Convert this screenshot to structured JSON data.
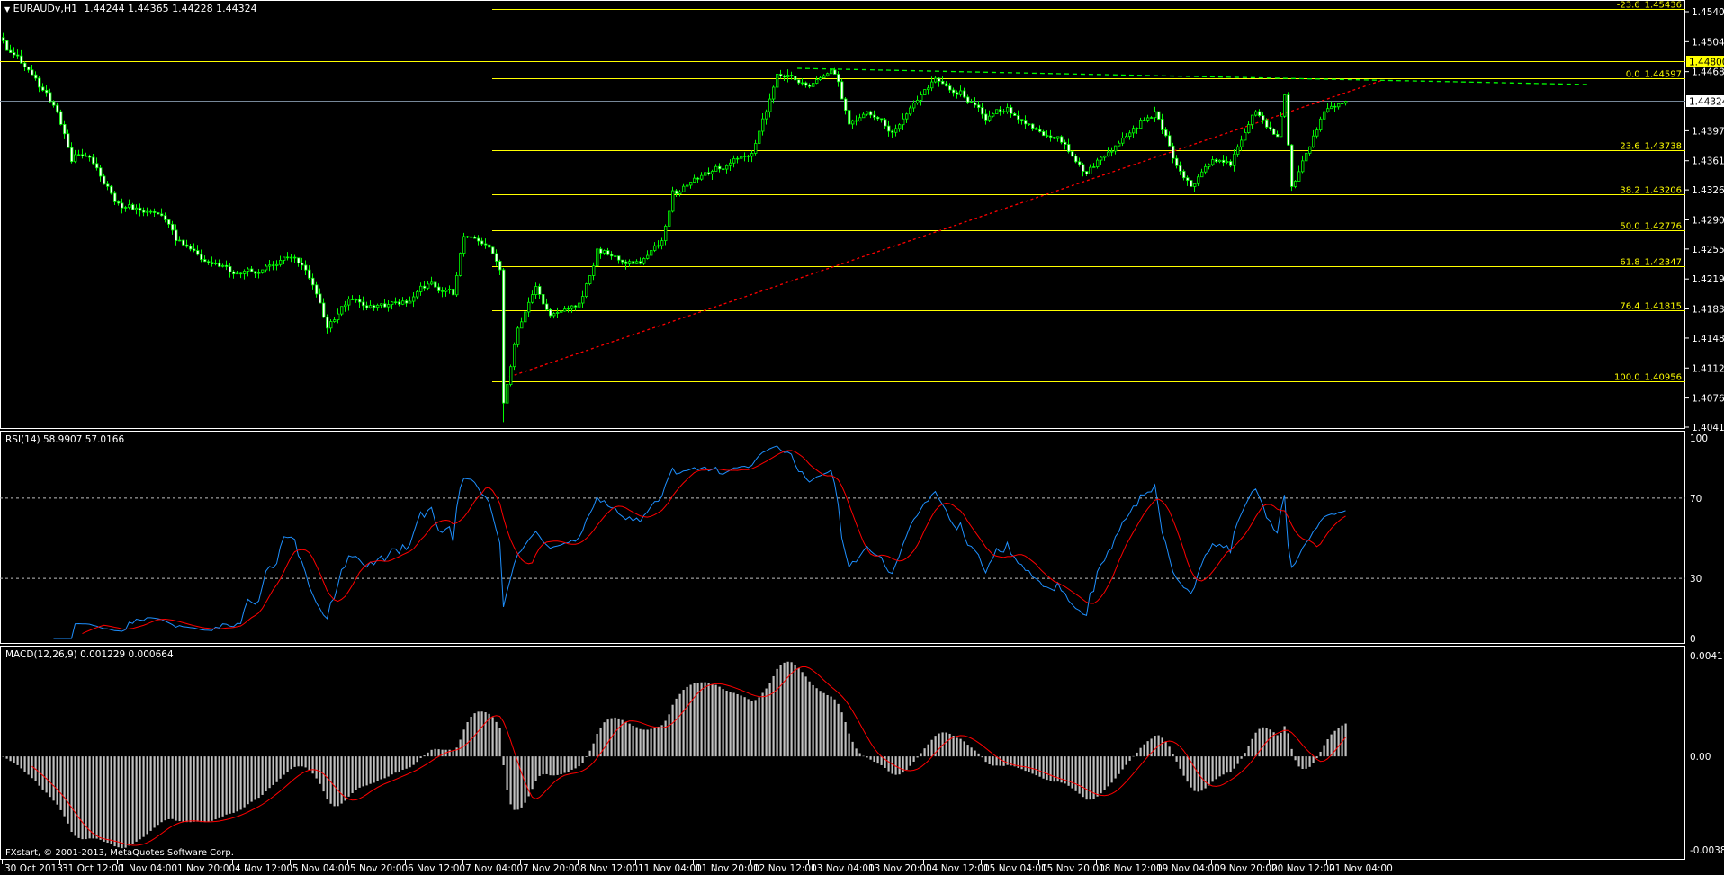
{
  "header": {
    "symbol_timeframe": "EURAUDv,H1",
    "ohlc": "1.44244 1.44365 1.44228 1.44324"
  },
  "footer": {
    "copyright": "FXstart, © 2001-2013, MetaQuotes Software Corp."
  },
  "colors": {
    "background": "#000000",
    "candle": "#00ff00",
    "fibo": "#ffff00",
    "bid_line": "#778899",
    "trendline": "#ff0000",
    "rsi": "#1e90ff",
    "signal": "#ff0000",
    "histogram": "#c0c0c0"
  },
  "chart_data": {
    "type": "candlestick",
    "price_axis": {
      "range": [
        1.4041,
        1.454
      ],
      "ticks": [
        "1.45400",
        "1.45040",
        "1.44680",
        "1.43970",
        "1.43610",
        "1.43260",
        "1.42900",
        "1.42550",
        "1.42190",
        "1.41830",
        "1.41480",
        "1.41120",
        "1.40760",
        "1.40410"
      ],
      "hline_label": "1.44800",
      "hline_value": 1.448,
      "bid_label": "1.44324",
      "bid_value": 1.44324
    },
    "time_labels": [
      "30 Oct 2013",
      "31 Oct 12:00",
      "1 Nov 04:00",
      "1 Nov 20:00",
      "4 Nov 12:00",
      "5 Nov 04:00",
      "5 Nov 20:00",
      "6 Nov 12:00",
      "7 Nov 04:00",
      "7 Nov 20:00",
      "8 Nov 12:00",
      "11 Nov 04:00",
      "11 Nov 20:00",
      "12 Nov 12:00",
      "13 Nov 04:00",
      "13 Nov 20:00",
      "14 Nov 12:00",
      "15 Nov 04:00",
      "15 Nov 20:00",
      "18 Nov 12:00",
      "19 Nov 04:00",
      "19 Nov 20:00",
      "20 Nov 12:00",
      "21 Nov 04:00"
    ],
    "approx_close": [
      {
        "t": "30 Oct 20:00",
        "p": 1.4505
      },
      {
        "t": "31 Oct 03:00",
        "p": 1.447
      },
      {
        "t": "31 Oct 11:00",
        "p": 1.442
      },
      {
        "t": "31 Oct 15:00",
        "p": 1.436
      },
      {
        "t": "31 Oct 20:00",
        "p": 1.4365
      },
      {
        "t": "1 Nov 04:00",
        "p": 1.431
      },
      {
        "t": "1 Nov 12:00",
        "p": 1.43
      },
      {
        "t": "1 Nov 17:00",
        "p": 1.429
      },
      {
        "t": "1 Nov 20:00",
        "p": 1.4265
      },
      {
        "t": "4 Nov 04:00",
        "p": 1.424
      },
      {
        "t": "4 Nov 12:00",
        "p": 1.4225
      },
      {
        "t": "4 Nov 20:00",
        "p": 1.423
      },
      {
        "t": "5 Nov 04:00",
        "p": 1.4245
      },
      {
        "t": "5 Nov 09:00",
        "p": 1.422
      },
      {
        "t": "5 Nov 14:00",
        "p": 1.416
      },
      {
        "t": "5 Nov 20:00",
        "p": 1.4195
      },
      {
        "t": "6 Nov 03:00",
        "p": 1.4185
      },
      {
        "t": "6 Nov 12:00",
        "p": 1.419
      },
      {
        "t": "6 Nov 19:00",
        "p": 1.4215
      },
      {
        "t": "7 Nov 01:00",
        "p": 1.42
      },
      {
        "t": "7 Nov 04:00",
        "p": 1.427
      },
      {
        "t": "7 Nov 10:00",
        "p": 1.426
      },
      {
        "t": "7 Nov 14:00",
        "p": 1.423
      },
      {
        "t": "7 Nov 15:00",
        "p": 1.407
      },
      {
        "t": "7 Nov 19:00",
        "p": 1.416
      },
      {
        "t": "8 Nov 00:00",
        "p": 1.421
      },
      {
        "t": "8 Nov 04:00",
        "p": 1.4175
      },
      {
        "t": "8 Nov 12:00",
        "p": 1.419
      },
      {
        "t": "8 Nov 17:00",
        "p": 1.4255
      },
      {
        "t": "11 Nov 04:00",
        "p": 1.424
      },
      {
        "t": "11 Nov 11:00",
        "p": 1.4265
      },
      {
        "t": "11 Nov 14:00",
        "p": 1.4325
      },
      {
        "t": "11 Nov 20:00",
        "p": 1.434
      },
      {
        "t": "12 Nov 05:00",
        "p": 1.4355
      },
      {
        "t": "12 Nov 12:00",
        "p": 1.437
      },
      {
        "t": "12 Nov 16:00",
        "p": 1.442
      },
      {
        "t": "12 Nov 19:00",
        "p": 1.4465
      },
      {
        "t": "13 Nov 04:00",
        "p": 1.445
      },
      {
        "t": "13 Nov 11:00",
        "p": 1.4465
      },
      {
        "t": "13 Nov 15:00",
        "p": 1.4405
      },
      {
        "t": "13 Nov 20:00",
        "p": 1.442
      },
      {
        "t": "14 Nov 03:00",
        "p": 1.4395
      },
      {
        "t": "14 Nov 11:00",
        "p": 1.444
      },
      {
        "t": "14 Nov 15:00",
        "p": 1.446
      },
      {
        "t": "14 Nov 22:00",
        "p": 1.4445
      },
      {
        "t": "15 Nov 05:00",
        "p": 1.441
      },
      {
        "t": "15 Nov 11:00",
        "p": 1.4425
      },
      {
        "t": "15 Nov 18:00",
        "p": 1.44
      },
      {
        "t": "18 Nov 01:00",
        "p": 1.439
      },
      {
        "t": "18 Nov 09:00",
        "p": 1.4345
      },
      {
        "t": "18 Nov 13:00",
        "p": 1.4365
      },
      {
        "t": "18 Nov 23:00",
        "p": 1.44
      },
      {
        "t": "19 Nov 04:00",
        "p": 1.442
      },
      {
        "t": "19 Nov 10:00",
        "p": 1.4355
      },
      {
        "t": "19 Nov 14:00",
        "p": 1.433
      },
      {
        "t": "19 Nov 21:00",
        "p": 1.436
      },
      {
        "t": "20 Nov 01:00",
        "p": 1.4355
      },
      {
        "t": "20 Nov 08:00",
        "p": 1.442
      },
      {
        "t": "20 Nov 14:00",
        "p": 1.439
      },
      {
        "t": "20 Nov 16:00",
        "p": 1.444
      },
      {
        "t": "20 Nov 18:00",
        "p": 1.433
      },
      {
        "t": "20 Nov 22:00",
        "p": 1.437
      },
      {
        "t": "21 Nov 03:00",
        "p": 1.442
      },
      {
        "t": "21 Nov 09:00",
        "p": 1.44324
      }
    ],
    "fibonacci": [
      {
        "label": "-23.6_1.45436",
        "value": 1.45436
      },
      {
        "label": "0.0_1.44597",
        "value": 1.44597
      },
      {
        "label": "23.6_1.43738",
        "value": 1.43738
      },
      {
        "label": "38.2_1.43206",
        "value": 1.43206
      },
      {
        "label": "50.0_1.42776",
        "value": 1.42776
      },
      {
        "label": "61.8_1.42347",
        "value": 1.42347
      },
      {
        "label": "76.4_1.41815",
        "value": 1.41815
      },
      {
        "label": "100.0_1.40956",
        "value": 1.40956
      }
    ],
    "rsi": {
      "legend": "RSI(14) 58.9907 57.0166",
      "range": [
        0,
        100
      ],
      "ticks": [
        "100",
        "70",
        "30",
        "0"
      ],
      "levels": [
        70,
        30
      ]
    },
    "macd": {
      "legend": "MACD(12,26,9) 0.001229 0.000664",
      "range": [
        -0.003818,
        0.004115
      ],
      "ticks": [
        "0.004115",
        "0.00",
        "-0.003818"
      ]
    }
  }
}
